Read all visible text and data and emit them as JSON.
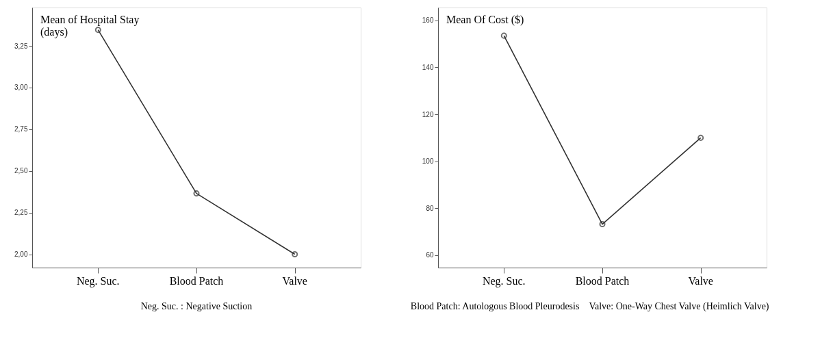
{
  "chart_data": [
    {
      "type": "line",
      "ylabel": "Mean of Hospital Stay\n(days)",
      "categories": [
        "Neg. Suc.",
        "Blood Patch",
        "Valve"
      ],
      "series": [
        {
          "color": "#333333",
          "values": [
            3.346,
            2.365,
            2.0
          ]
        }
      ],
      "ylim": [
        1.92,
        3.48
      ],
      "yticks": [
        {
          "value": 2.0,
          "label": "2,00"
        },
        {
          "value": 2.25,
          "label": "2,25"
        },
        {
          "value": 2.5,
          "label": "2,50"
        },
        {
          "value": 2.75,
          "label": "2,75"
        },
        {
          "value": 3.0,
          "label": "3,00"
        },
        {
          "value": 3.25,
          "label": "3,25"
        }
      ],
      "marker": "circle",
      "line_style": "solid",
      "grid": false,
      "legend": false,
      "annotations": [
        "Neg. Suc. : Negative Suction"
      ]
    },
    {
      "type": "line",
      "ylabel": "Mean Of Cost ($)",
      "categories": [
        "Neg. Suc.",
        "Blood Patch",
        "Valve"
      ],
      "series": [
        {
          "color": "#333333",
          "values": [
            153.5,
            73.2,
            110
          ]
        }
      ],
      "ylim": [
        54.7,
        165.5
      ],
      "yticks": [
        60,
        80,
        100,
        120,
        140,
        160
      ],
      "marker": "circle",
      "line_style": "solid",
      "grid": false,
      "legend": false,
      "annotations": [
        "Blood Patch: Autologous Blood Pleurodesis",
        "Valve: One-Way Chest Valve (Heimlich Valve)"
      ]
    }
  ]
}
